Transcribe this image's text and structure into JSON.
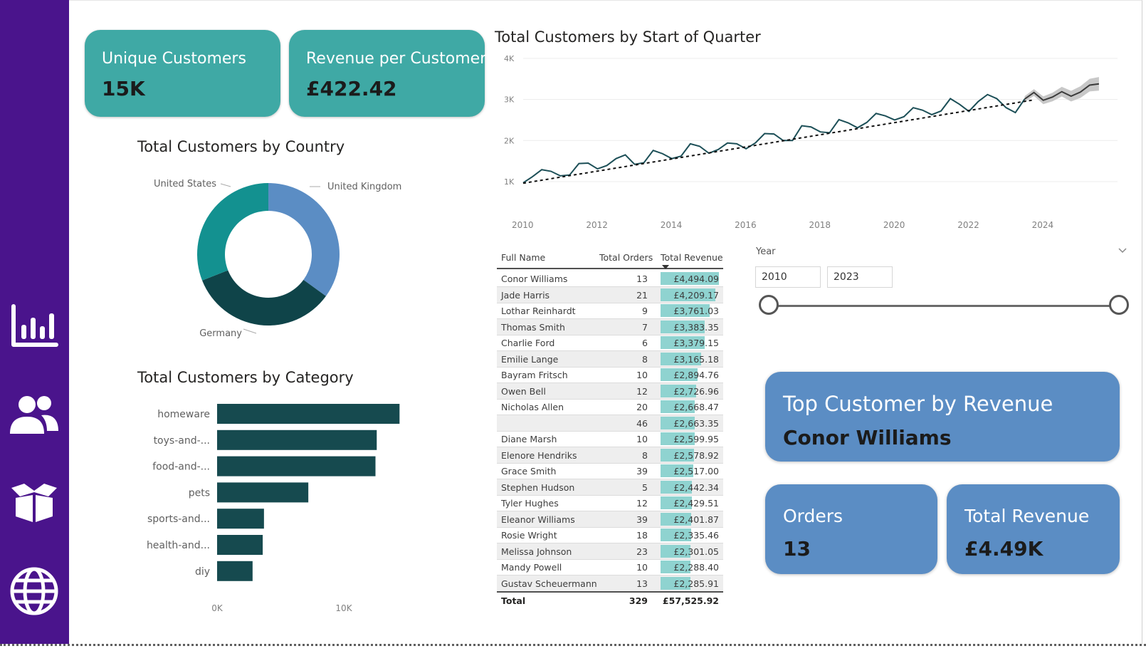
{
  "sidebar": {
    "items": [
      {
        "icon": "bar-chart-icon",
        "label": "report"
      },
      {
        "icon": "people-icon",
        "label": "customers"
      },
      {
        "icon": "box-icon",
        "label": "products"
      },
      {
        "icon": "globe-icon",
        "label": "geography"
      }
    ]
  },
  "cards": {
    "unique_customers": {
      "label": "Unique Customers",
      "value": "15K"
    },
    "revenue_per_customer": {
      "label": "Revenue per Customer",
      "value": "£422.42"
    },
    "top_customer": {
      "label": "Top Customer by Revenue",
      "value": "Conor Williams"
    },
    "orders": {
      "label": "Orders",
      "value": "13"
    },
    "total_revenue": {
      "label": "Total Revenue",
      "value": "£4.49K"
    }
  },
  "charts": {
    "country_title": "Total Customers by Country",
    "category_title": "Total Customers by Category",
    "quarter_title": "Total Customers by Start of Quarter"
  },
  "chart_data": [
    {
      "type": "pie",
      "title": "Total Customers by Country",
      "categories": [
        "United Kingdom",
        "Germany",
        "United States"
      ],
      "values": [
        35,
        34,
        31
      ],
      "colors": [
        "#5b8dc4",
        "#0f4449",
        "#139190"
      ],
      "donut": true
    },
    {
      "type": "bar",
      "orientation": "horizontal",
      "title": "Total Customers by Category",
      "categories": [
        "homeware",
        "toys-and-...",
        "food-and-...",
        "pets",
        "sports-and...",
        "health-and...",
        "diy"
      ],
      "values": [
        14400,
        12600,
        12500,
        7200,
        3700,
        3600,
        2800
      ],
      "xticks": [
        "0K",
        "10K"
      ],
      "xlim": [
        0,
        16000
      ],
      "color": "#164a4f"
    },
    {
      "type": "line",
      "title": "Total Customers by Start of Quarter",
      "ylim": [
        600,
        4000
      ],
      "yticks": [
        {
          "v": 1000,
          "label": "1K"
        },
        {
          "v": 2000,
          "label": "2K"
        },
        {
          "v": 3000,
          "label": "3K"
        },
        {
          "v": 4000,
          "label": "4K"
        }
      ],
      "xticks": [
        "2010",
        "2012",
        "2014",
        "2016",
        "2018",
        "2020",
        "2022",
        "2024"
      ],
      "xlim": [
        2010,
        2026
      ],
      "grid": true,
      "series": [
        {
          "x": [
            2010.0,
            2010.25,
            2010.5,
            2010.75,
            2011.0,
            2011.25,
            2011.5,
            2011.75,
            2012.0,
            2012.25,
            2012.5,
            2012.75,
            2013.0,
            2013.25,
            2013.5,
            2013.75,
            2014.0,
            2014.25,
            2014.5,
            2014.75,
            2015.0,
            2015.25,
            2015.5,
            2015.75,
            2016.0,
            2016.25,
            2016.5,
            2016.75,
            2017.0,
            2017.25,
            2017.5,
            2017.75,
            2018.0,
            2018.25,
            2018.5,
            2018.75,
            2019.0,
            2019.25,
            2019.5,
            2019.75,
            2020.0,
            2020.25,
            2020.5,
            2020.75,
            2021.0,
            2021.25,
            2021.5,
            2021.75,
            2022.0,
            2022.25,
            2022.5,
            2022.75,
            2023.0,
            2023.25,
            2023.5
          ],
          "y": [
            970,
            1120,
            1290,
            1250,
            1140,
            1160,
            1440,
            1450,
            1310,
            1390,
            1560,
            1650,
            1420,
            1460,
            1760,
            1680,
            1560,
            1620,
            1920,
            1860,
            1690,
            1780,
            1940,
            1920,
            1800,
            1940,
            2170,
            2160,
            2000,
            2000,
            2360,
            2330,
            2210,
            2190,
            2510,
            2430,
            2310,
            2440,
            2660,
            2600,
            2500,
            2580,
            2800,
            2740,
            2630,
            2720,
            3020,
            2880,
            2710,
            2950,
            3120,
            3020,
            2800,
            2680,
            3010
          ]
        },
        {
          "name": "forecast",
          "x": [
            2023.5,
            2023.75,
            2024.0,
            2024.25,
            2024.5,
            2024.75,
            2025.0,
            2025.25,
            2025.5
          ],
          "y": [
            3010,
            3170,
            2980,
            3060,
            3190,
            3080,
            3180,
            3350,
            3380
          ]
        }
      ],
      "trend": {
        "from": [
          2010.0,
          960
        ],
        "to": [
          2023.75,
          2990
        ]
      }
    }
  ],
  "table": {
    "headers": {
      "name": "Full Name",
      "orders": "Total Orders",
      "revenue": "Total Revenue"
    },
    "rows": [
      {
        "name": "Conor Williams",
        "orders": "13",
        "revenue": "£4,494.09",
        "pct": 1.0
      },
      {
        "name": "Jade Harris",
        "orders": "21",
        "revenue": "£4,209.17",
        "pct": 0.94
      },
      {
        "name": "Lothar Reinhardt",
        "orders": "9",
        "revenue": "£3,761.03",
        "pct": 0.84
      },
      {
        "name": "Thomas Smith",
        "orders": "7",
        "revenue": "£3,383.35",
        "pct": 0.75
      },
      {
        "name": "Charlie Ford",
        "orders": "6",
        "revenue": "£3,379.15",
        "pct": 0.75
      },
      {
        "name": "Emilie Lange",
        "orders": "8",
        "revenue": "£3,165.18",
        "pct": 0.7
      },
      {
        "name": "Bayram Fritsch",
        "orders": "10",
        "revenue": "£2,894.76",
        "pct": 0.64
      },
      {
        "name": "Owen Bell",
        "orders": "12",
        "revenue": "£2,726.96",
        "pct": 0.61
      },
      {
        "name": "Nicholas Allen",
        "orders": "20",
        "revenue": "£2,668.47",
        "pct": 0.59
      },
      {
        "name": "",
        "orders": "46",
        "revenue": "£2,663.35",
        "pct": 0.59
      },
      {
        "name": "Diane Marsh",
        "orders": "10",
        "revenue": "£2,599.95",
        "pct": 0.58
      },
      {
        "name": "Elenore Hendriks",
        "orders": "8",
        "revenue": "£2,578.92",
        "pct": 0.57
      },
      {
        "name": "Grace Smith",
        "orders": "39",
        "revenue": "£2,517.00",
        "pct": 0.56
      },
      {
        "name": "Stephen Hudson",
        "orders": "5",
        "revenue": "£2,442.34",
        "pct": 0.54
      },
      {
        "name": "Tyler Hughes",
        "orders": "12",
        "revenue": "£2,429.51",
        "pct": 0.54
      },
      {
        "name": "Eleanor Williams",
        "orders": "39",
        "revenue": "£2,401.87",
        "pct": 0.53
      },
      {
        "name": "Rosie Wright",
        "orders": "18",
        "revenue": "£2,335.46",
        "pct": 0.52
      },
      {
        "name": "Melissa Johnson",
        "orders": "23",
        "revenue": "£2,301.05",
        "pct": 0.51
      },
      {
        "name": "Mandy Powell",
        "orders": "10",
        "revenue": "£2,288.40",
        "pct": 0.51
      },
      {
        "name": "Gustav Scheuermann",
        "orders": "13",
        "revenue": "£2,285.91",
        "pct": 0.51
      }
    ],
    "total": {
      "label": "Total",
      "orders": "329",
      "revenue": "£57,525.92"
    }
  },
  "slicer": {
    "label": "Year",
    "start": "2010",
    "end": "2023",
    "position": [
      0,
      1
    ]
  }
}
